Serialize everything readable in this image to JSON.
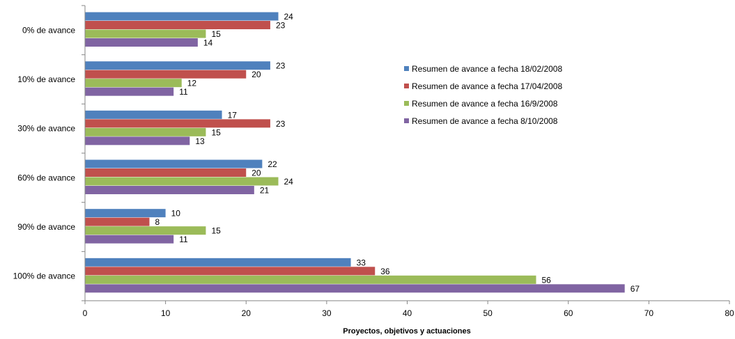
{
  "chart_data": {
    "type": "bar",
    "orientation": "horizontal",
    "categories": [
      "0% de avance",
      "10% de avance",
      "30% de avance",
      "60% de avance",
      "90% de avance",
      "100% de avance"
    ],
    "series": [
      {
        "name": "Resumen de avance a fecha 18/02/2008",
        "color": "#4F81BD",
        "values": [
          24,
          23,
          17,
          22,
          10,
          33
        ]
      },
      {
        "name": "Resumen de avance a fecha 17/04/2008",
        "color": "#C0504D",
        "values": [
          23,
          20,
          23,
          20,
          8,
          36
        ]
      },
      {
        "name": "Resumen de avance a fecha 16/9/2008",
        "color": "#9BBB59",
        "values": [
          15,
          12,
          15,
          24,
          15,
          56
        ]
      },
      {
        "name": "Resumen de avance a fecha 8/10/2008",
        "color": "#8064A2",
        "values": [
          14,
          11,
          13,
          21,
          11,
          67
        ]
      }
    ],
    "xlabel": "Proyectos, objetivos y actuaciones",
    "ylabel": "",
    "xlim": [
      0,
      80
    ],
    "x_ticks": [
      "0",
      "10",
      "20",
      "30",
      "40",
      "50",
      "60",
      "70",
      "80"
    ],
    "grid": false,
    "legend_position": "right"
  }
}
